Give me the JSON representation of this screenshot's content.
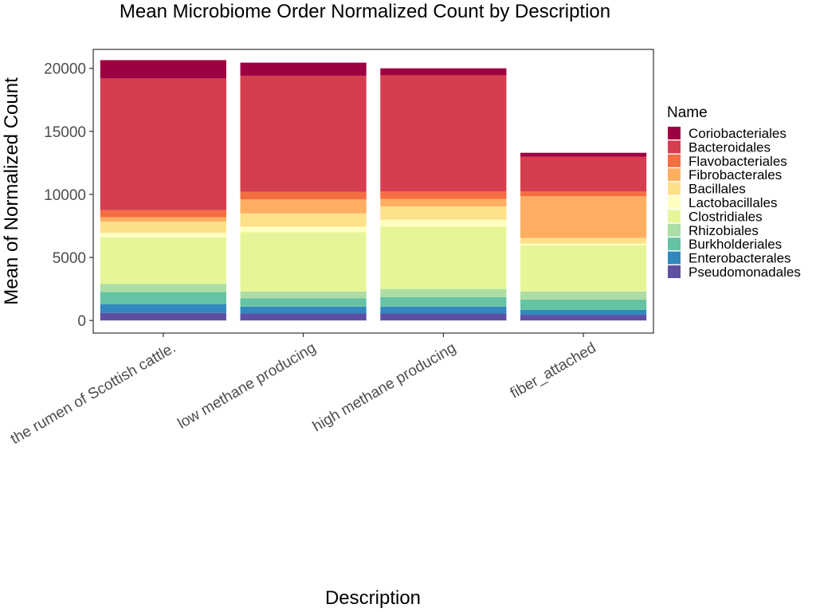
{
  "chart_data": {
    "type": "bar",
    "stacked": true,
    "title": "Mean Microbiome Order Normalized Count by Description",
    "xlabel": "Description",
    "ylabel": "Mean of Normalized Count",
    "ylim": [
      -1000,
      21500
    ],
    "yticks": [
      0,
      5000,
      10000,
      15000,
      20000
    ],
    "grid": false,
    "legend_position": "right",
    "legend_title": "Name",
    "categories": [
      "the rumen of Scottish cattle.",
      "low methane producing",
      "high methane producing",
      "fiber_attached"
    ],
    "series": [
      {
        "name": "Pseudomonadales",
        "color": "#5E4FA2",
        "values": [
          600,
          550,
          550,
          450
        ]
      },
      {
        "name": "Enterobacterales",
        "color": "#3288BD",
        "values": [
          700,
          550,
          550,
          400
        ]
      },
      {
        "name": "Burkholderiales",
        "color": "#66C2A5",
        "values": [
          950,
          650,
          750,
          800
        ]
      },
      {
        "name": "Rhizobiales",
        "color": "#ABDDA4",
        "values": [
          650,
          550,
          650,
          650
        ]
      },
      {
        "name": "Clostridiales",
        "color": "#E6F598",
        "values": [
          3700,
          4700,
          4950,
          3650
        ]
      },
      {
        "name": "Lactobacillales",
        "color": "#FFFFBF",
        "values": [
          350,
          450,
          550,
          150
        ]
      },
      {
        "name": "Bacillales",
        "color": "#FEE08B",
        "values": [
          900,
          1050,
          1050,
          450
        ]
      },
      {
        "name": "Fibrobacterales",
        "color": "#FDAE61",
        "values": [
          350,
          1100,
          600,
          3300
        ]
      },
      {
        "name": "Flavobacteriales",
        "color": "#F46D43",
        "values": [
          550,
          600,
          600,
          400
        ]
      },
      {
        "name": "Bacteroidales",
        "color": "#D53E4F",
        "values": [
          10450,
          9200,
          9200,
          2750
        ]
      },
      {
        "name": "Coriobacteriales",
        "color": "#9E0142",
        "values": [
          1450,
          1050,
          550,
          300
        ]
      }
    ]
  }
}
